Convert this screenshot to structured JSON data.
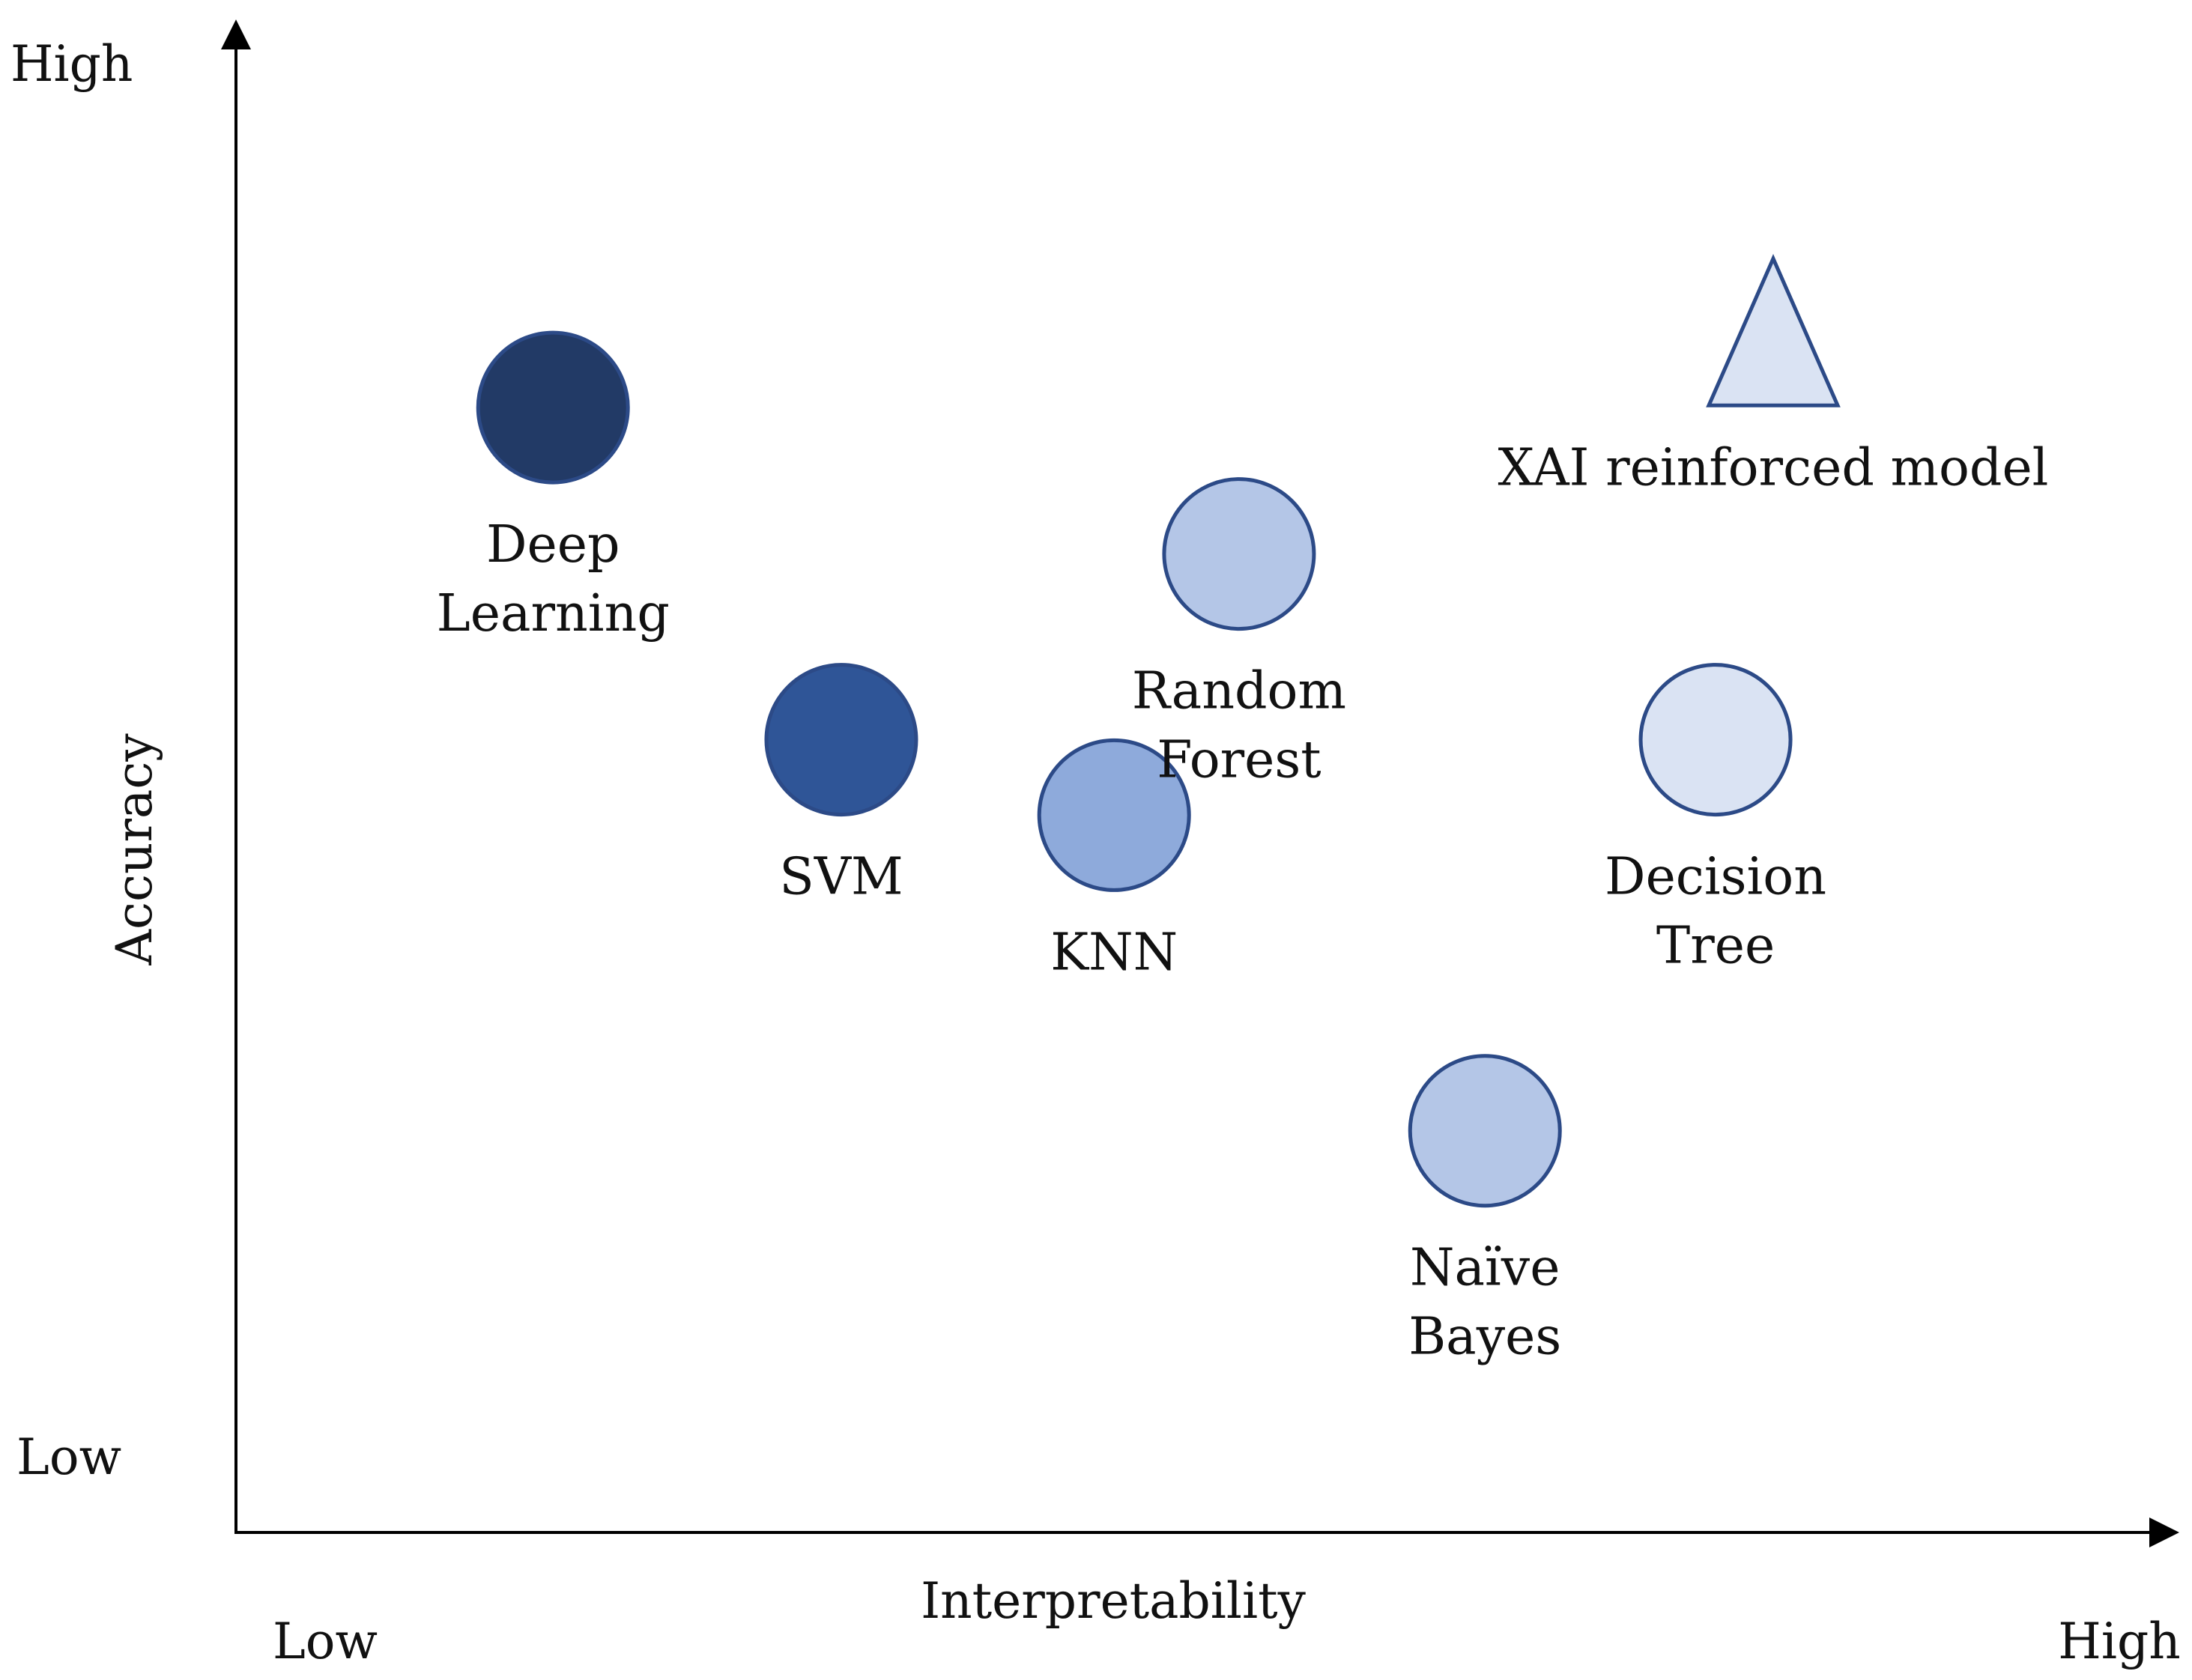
{
  "chart_data": {
    "type": "scatter",
    "title": "",
    "xlabel": "Interpretability",
    "ylabel": "Accuracy",
    "x_low_label": "Low",
    "x_high_label": "High",
    "y_low_label": "Low",
    "y_high_label": "High",
    "xlim": [
      0,
      100
    ],
    "ylim": [
      0,
      100
    ],
    "points": [
      {
        "name": "Deep Learning",
        "label_lines": [
          "Deep",
          "Learning"
        ],
        "x": 16.5,
        "y": 74.5,
        "shape": "circle",
        "fill": "#223a66",
        "stroke": "#2c4a87",
        "label_pos": "below"
      },
      {
        "name": "SVM",
        "label_lines": [
          "SVM"
        ],
        "x": 31.5,
        "y": 52.5,
        "shape": "circle",
        "fill": "#2f5597",
        "stroke": "#2c4a87",
        "label_pos": "below"
      },
      {
        "name": "KNN",
        "label_lines": [
          "KNN"
        ],
        "x": 45.7,
        "y": 47.5,
        "shape": "circle",
        "fill": "#8eaadb",
        "stroke": "#2c4a87",
        "label_pos": "below"
      },
      {
        "name": "Random Forest",
        "label_lines": [
          "Random",
          "Forest"
        ],
        "x": 52.2,
        "y": 64.8,
        "shape": "circle",
        "fill": "#b4c6e7",
        "stroke": "#2c4a87",
        "label_pos": "below"
      },
      {
        "name": "Decision Tree",
        "label_lines": [
          "Decision",
          "Tree"
        ],
        "x": 77.0,
        "y": 52.5,
        "shape": "circle",
        "fill": "#dae3f3",
        "stroke": "#2c4a87",
        "label_pos": "below"
      },
      {
        "name": "Naïve Bayes",
        "label_lines": [
          "Naïve",
          "Bayes"
        ],
        "x": 65.0,
        "y": 26.6,
        "shape": "circle",
        "fill": "#b4c6e7",
        "stroke": "#2c4a87",
        "label_pos": "below"
      },
      {
        "name": "XAI reinforced model",
        "label_lines": [
          "XAI reinforced model"
        ],
        "x": 80.0,
        "y": 79.5,
        "shape": "triangle",
        "fill": "#dae3f3",
        "stroke": "#2c4a87",
        "label_pos": "below"
      }
    ]
  }
}
